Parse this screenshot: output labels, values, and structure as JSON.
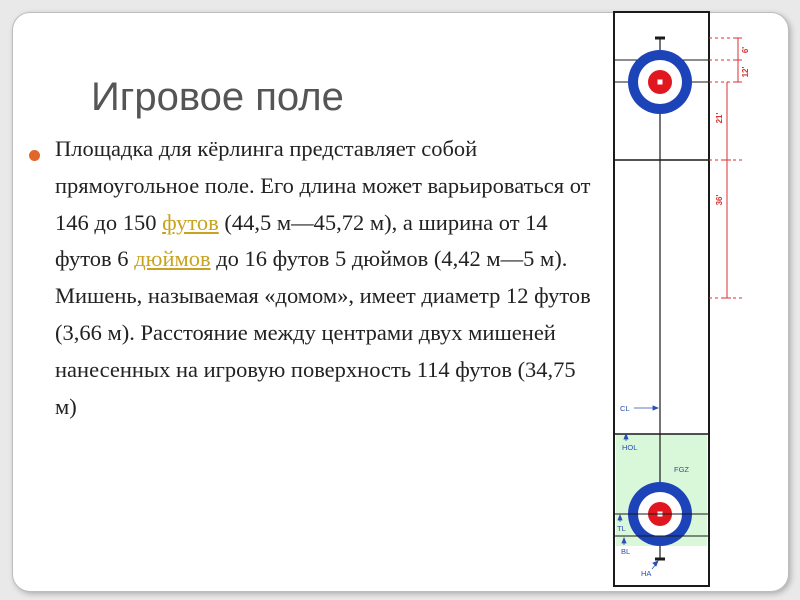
{
  "slide": {
    "title": "Игровое поле",
    "body": {
      "part1": "Площадка для кёрлинга представляет собой прямоугольное поле. Его длина может варьироваться от 146 до 150 ",
      "link1": "футов",
      "part2": " (44,5 м—45,72 м), а ширина от 14 футов 6 ",
      "link2": "дюймов",
      "part3": " до 16 футов 5 дюймов (4,42 м—5 м). Мишень, называемая «домом», имеет диаметр 12 футов (3,66 м). Расстояние между центрами двух мишеней нанесенных на игровую поверхность 114 футов (34,75 м)"
    }
  },
  "diagram": {
    "dimensions": {
      "d6": "6'",
      "d12": "12'",
      "d21": "21'",
      "d36": "36'"
    },
    "labels": {
      "cl": "CL",
      "hol": "HOL",
      "fgz": "FGZ",
      "tl": "TL",
      "bl": "BL",
      "ha": "HA"
    },
    "colors": {
      "house_outer": "#1d43b8",
      "house_red": "#e0171f",
      "fgz_fill": "#d9f7d9",
      "dim_line": "#d83030"
    }
  }
}
